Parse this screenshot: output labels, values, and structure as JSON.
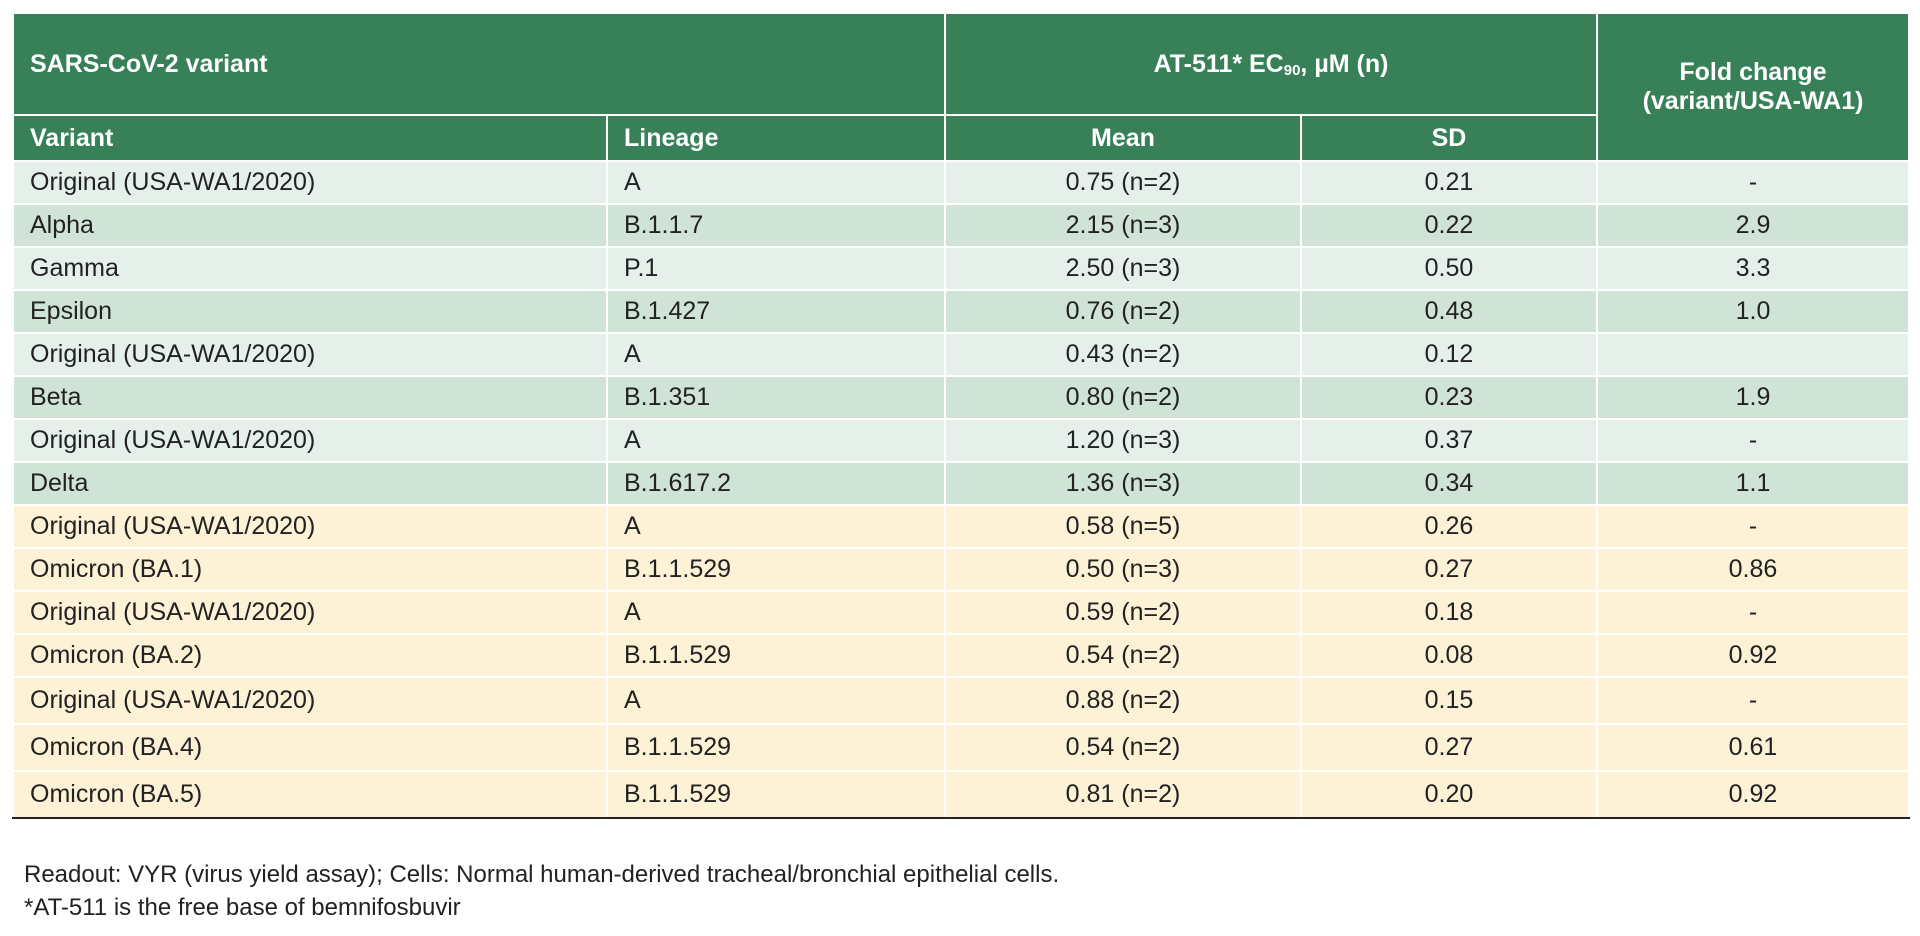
{
  "header": {
    "group_variant": "SARS-CoV-2 variant",
    "group_ec90_prefix": "AT-511* EC",
    "group_ec90_sub": "90",
    "group_ec90_suffix": ", µM (n)",
    "fold_change_line1": "Fold change",
    "fold_change_line2": "(variant/USA-WA1)",
    "col_variant": "Variant",
    "col_lineage": "Lineage",
    "col_mean": "Mean",
    "col_sd": "SD"
  },
  "rows": [
    {
      "variant": "Original (USA-WA1/2020)",
      "lineage": "A",
      "mean": "0.75 (n=2)",
      "sd": "0.21",
      "fold": "-"
    },
    {
      "variant": "Alpha",
      "lineage": "B.1.1.7",
      "mean": "2.15 (n=3)",
      "sd": "0.22",
      "fold": "2.9"
    },
    {
      "variant": "Gamma",
      "lineage": "P.1",
      "mean": "2.50 (n=3)",
      "sd": "0.50",
      "fold": "3.3"
    },
    {
      "variant": "Epsilon",
      "lineage": "B.1.427",
      "mean": "0.76 (n=2)",
      "sd": "0.48",
      "fold": "1.0"
    },
    {
      "variant": "Original (USA-WA1/2020)",
      "lineage": "A",
      "mean": "0.43 (n=2)",
      "sd": "0.12",
      "fold": ""
    },
    {
      "variant": "Beta",
      "lineage": "B.1.351",
      "mean": "0.80 (n=2)",
      "sd": "0.23",
      "fold": "1.9"
    },
    {
      "variant": "Original (USA-WA1/2020)",
      "lineage": "A",
      "mean": "1.20 (n=3)",
      "sd": "0.37",
      "fold": "-"
    },
    {
      "variant": "Delta",
      "lineage": "B.1.617.2",
      "mean": "1.36 (n=3)",
      "sd": "0.34",
      "fold": "1.1"
    },
    {
      "variant": "Original (USA-WA1/2020)",
      "lineage": "A",
      "mean": "0.58 (n=5)",
      "sd": "0.26",
      "fold": "-"
    },
    {
      "variant": "Omicron (BA.1)",
      "lineage": "B.1.1.529",
      "mean": "0.50 (n=3)",
      "sd": "0.27",
      "fold": "0.86"
    },
    {
      "variant": "Original (USA-WA1/2020)",
      "lineage": "A",
      "mean": "0.59 (n=2)",
      "sd": "0.18",
      "fold": "-"
    },
    {
      "variant": "Omicron (BA.2)",
      "lineage": "B.1.1.529",
      "mean": "0.54 (n=2)",
      "sd": "0.08",
      "fold": "0.92"
    },
    {
      "variant": "Original (USA-WA1/2020)",
      "lineage": "A",
      "mean": "0.88 (n=2)",
      "sd": "0.15",
      "fold": "-"
    },
    {
      "variant": "Omicron (BA.4)",
      "lineage": "B.1.1.529",
      "mean": "0.54 (n=2)",
      "sd": "0.27",
      "fold": "0.61"
    },
    {
      "variant": "Omicron (BA.5)",
      "lineage": "B.1.1.529",
      "mean": "0.81 (n=2)",
      "sd": "0.20",
      "fold": "0.92"
    }
  ],
  "footnotes": {
    "readout": "Readout:  VYR (virus yield assay); Cells: Normal human-derived tracheal/bronchial epithelial cells.",
    "at511": "*AT-511 is the free base of bemnifosbuvir"
  },
  "colors": {
    "header_green": "#378058",
    "row_light_green": "#e6f0ea",
    "row_mid_green": "#cfe3d7",
    "row_cream": "#fdf1d6"
  }
}
